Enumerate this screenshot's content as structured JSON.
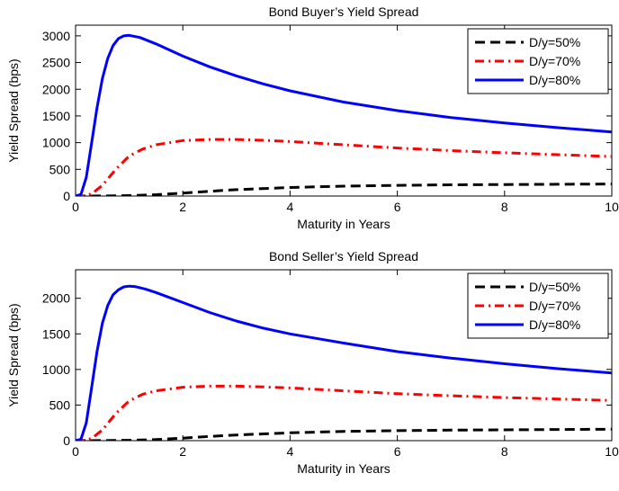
{
  "chart_data": [
    {
      "type": "line",
      "title": "Bond Buyer’s Yield Spread",
      "xlabel": "Maturity in Years",
      "ylabel": "Yield Spread (bps)",
      "xlim": [
        0,
        10
      ],
      "ylim": [
        0,
        3200
      ],
      "xticks": [
        0,
        2,
        4,
        6,
        8,
        10
      ],
      "yticks": [
        0,
        500,
        1000,
        1500,
        2000,
        2500,
        3000
      ],
      "grid": false,
      "legend_position": "top-right",
      "series": [
        {
          "name": "D/y=50%",
          "color": "#000000",
          "dash": "dashed",
          "x": [
            0,
            0.5,
            1,
            1.5,
            2,
            2.5,
            3,
            4,
            5,
            6,
            7,
            8,
            9,
            10
          ],
          "y": [
            0,
            1,
            8,
            25,
            55,
            90,
            120,
            160,
            185,
            200,
            210,
            215,
            220,
            225
          ]
        },
        {
          "name": "D/y=70%",
          "color": "#ff0000",
          "dash": "dashdot",
          "x": [
            0,
            0.15,
            0.3,
            0.5,
            0.75,
            1,
            1.25,
            1.5,
            2,
            2.5,
            3,
            3.5,
            4,
            5,
            6,
            7,
            8,
            9,
            10
          ],
          "y": [
            0,
            5,
            40,
            200,
            500,
            750,
            880,
            960,
            1040,
            1060,
            1060,
            1045,
            1020,
            960,
            900,
            850,
            810,
            775,
            740
          ]
        },
        {
          "name": "D/y=80%",
          "color": "#0000ff",
          "dash": "solid",
          "x": [
            0,
            0.1,
            0.2,
            0.3,
            0.4,
            0.5,
            0.6,
            0.7,
            0.8,
            0.9,
            1,
            1.2,
            1.5,
            2,
            2.5,
            3,
            3.5,
            4,
            5,
            6,
            7,
            8,
            9,
            10
          ],
          "y": [
            0,
            30,
            350,
            1000,
            1650,
            2200,
            2580,
            2820,
            2950,
            3000,
            3010,
            2970,
            2850,
            2620,
            2420,
            2250,
            2100,
            1970,
            1760,
            1600,
            1470,
            1370,
            1280,
            1200
          ]
        }
      ]
    },
    {
      "type": "line",
      "title": "Bond Seller’s Yield Spread",
      "xlabel": "Maturity in Years",
      "ylabel": "Yield Spread (bps)",
      "xlim": [
        0,
        10
      ],
      "ylim": [
        0,
        2400
      ],
      "xticks": [
        0,
        2,
        4,
        6,
        8,
        10
      ],
      "yticks": [
        0,
        500,
        1000,
        1500,
        2000
      ],
      "grid": false,
      "legend_position": "top-right",
      "series": [
        {
          "name": "D/y=50%",
          "color": "#000000",
          "dash": "dashed",
          "x": [
            0,
            0.5,
            1,
            1.5,
            2,
            2.5,
            3,
            4,
            5,
            6,
            7,
            8,
            9,
            10
          ],
          "y": [
            0,
            1,
            5,
            15,
            35,
            60,
            80,
            110,
            130,
            140,
            148,
            152,
            156,
            160
          ]
        },
        {
          "name": "D/y=70%",
          "color": "#ff0000",
          "dash": "dashdot",
          "x": [
            0,
            0.15,
            0.3,
            0.5,
            0.75,
            1,
            1.25,
            1.5,
            2,
            2.5,
            3,
            3.5,
            4,
            5,
            6,
            7,
            8,
            9,
            10
          ],
          "y": [
            0,
            5,
            30,
            150,
            380,
            560,
            650,
            700,
            750,
            765,
            765,
            755,
            740,
            700,
            660,
            630,
            605,
            585,
            565
          ]
        },
        {
          "name": "D/y=80%",
          "color": "#0000ff",
          "dash": "solid",
          "x": [
            0,
            0.1,
            0.2,
            0.3,
            0.4,
            0.5,
            0.6,
            0.7,
            0.8,
            0.9,
            1,
            1.1,
            1.3,
            1.5,
            2,
            2.5,
            3,
            3.5,
            4,
            5,
            6,
            7,
            8,
            9,
            10
          ],
          "y": [
            0,
            20,
            250,
            750,
            1250,
            1650,
            1900,
            2050,
            2120,
            2160,
            2170,
            2165,
            2130,
            2080,
            1940,
            1800,
            1680,
            1580,
            1500,
            1370,
            1250,
            1160,
            1080,
            1010,
            950
          ]
        }
      ]
    }
  ]
}
